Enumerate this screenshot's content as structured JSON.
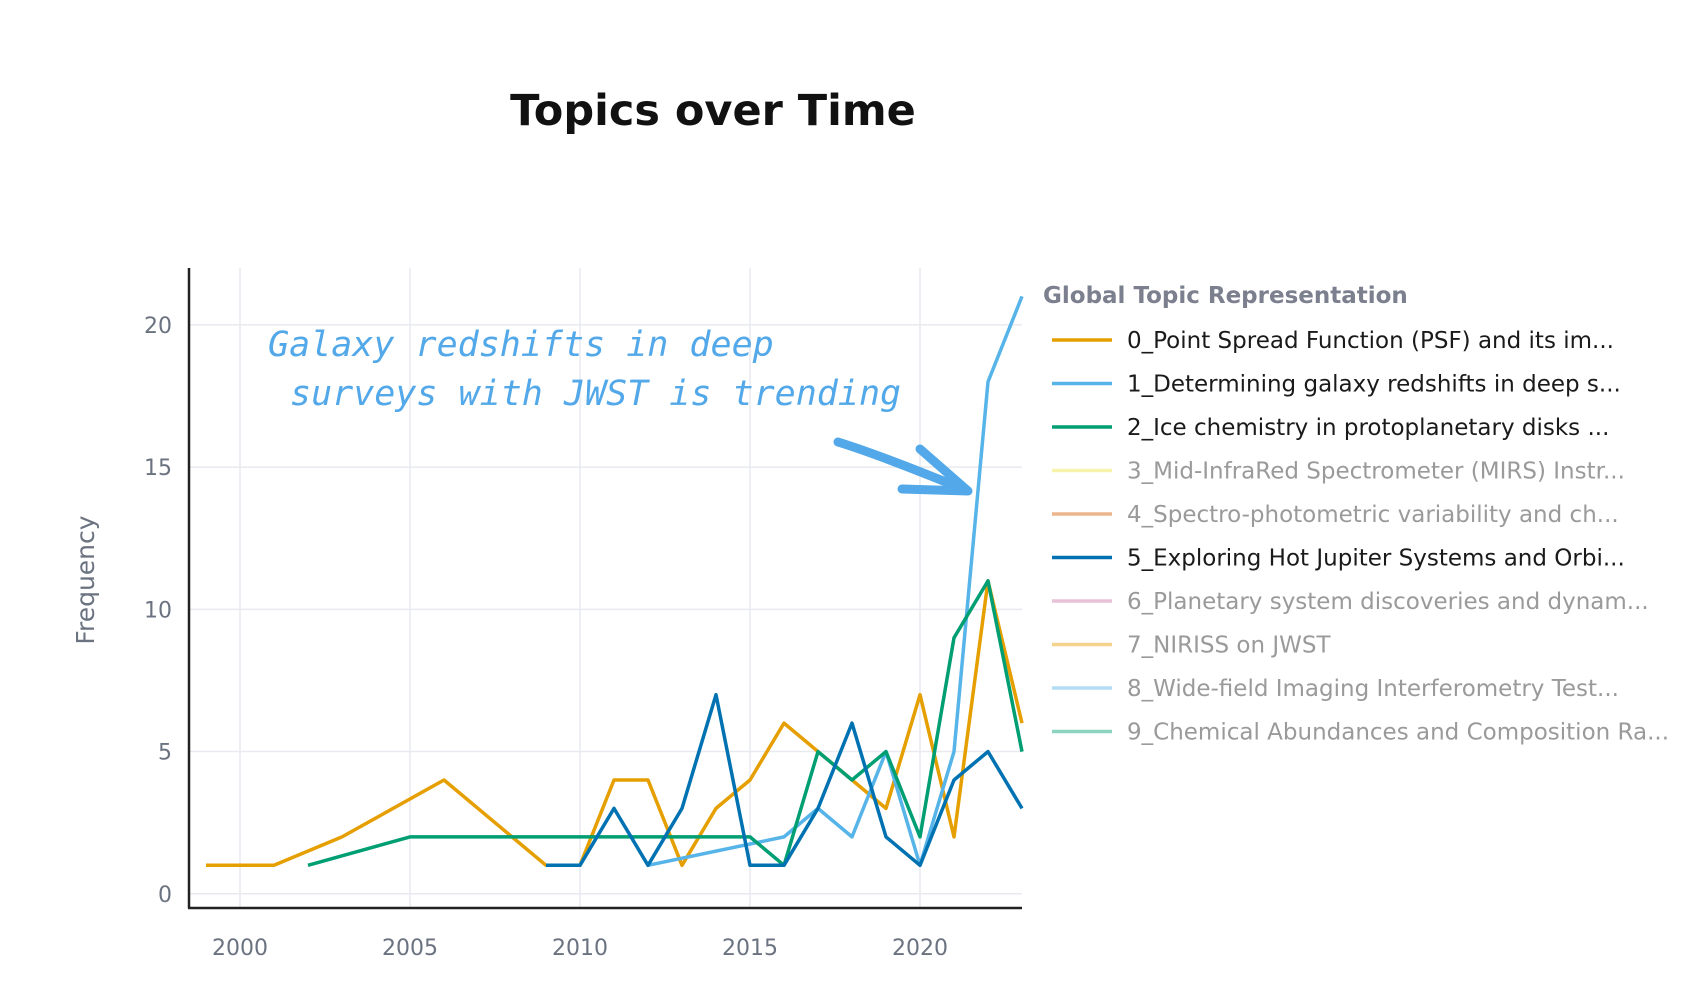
{
  "chart_data": {
    "type": "line",
    "title": "Topics over Time",
    "xlabel": "",
    "ylabel": "Frequency",
    "xlim": [
      1998.5,
      2023
    ],
    "ylim": [
      -0.5,
      22
    ],
    "x_ticks": [
      "2000",
      "2005",
      "2010",
      "2015",
      "2020"
    ],
    "y_ticks": [
      "0",
      "5",
      "10",
      "15",
      "20"
    ],
    "grid": true,
    "legend": {
      "title": "Global Topic Representation",
      "placement": "right"
    },
    "series": [
      {
        "name": "0_Point Spread Function (PSF) and its im...",
        "color": "#e69f00",
        "visible": true,
        "x": [
          1999,
          2000,
          2001,
          2003,
          2006,
          2008,
          2009,
          2010,
          2011,
          2012,
          2013,
          2014,
          2015,
          2016,
          2018,
          2019,
          2020,
          2021,
          2022,
          2023
        ],
        "y": [
          1,
          1,
          1,
          2,
          4,
          2,
          1,
          1,
          4,
          4,
          1,
          3,
          4,
          6,
          4,
          3,
          7,
          2,
          11,
          6
        ]
      },
      {
        "name": "1_Determining galaxy redshifts in deep s...",
        "color": "#56b4e9",
        "visible": true,
        "x": [
          2012,
          2016,
          2017,
          2018,
          2019,
          2020,
          2021,
          2022,
          2023
        ],
        "y": [
          1,
          2,
          3,
          2,
          5,
          1,
          5,
          18,
          21
        ]
      },
      {
        "name": "2_Ice chemistry in protoplanetary disks ...",
        "color": "#009e73",
        "visible": true,
        "x": [
          2002,
          2005,
          2015,
          2016,
          2017,
          2018,
          2019,
          2020,
          2021,
          2022,
          2023
        ],
        "y": [
          1,
          2,
          2,
          1,
          5,
          4,
          5,
          2,
          9,
          11,
          5
        ]
      },
      {
        "name": "3_Mid-InfraRed Spectrometer (MIRS) Instr...",
        "color": "#f0e442",
        "visible": false
      },
      {
        "name": "4_Spectro-photometric variability and ch...",
        "color": "#d55e00",
        "visible": false
      },
      {
        "name": "5_Exploring Hot Jupiter Systems and Orbi...",
        "color": "#0072b2",
        "visible": true,
        "x": [
          2009,
          2010,
          2011,
          2012,
          2013,
          2014,
          2015,
          2016,
          2017,
          2018,
          2019,
          2020,
          2021,
          2022,
          2023
        ],
        "y": [
          1,
          1,
          3,
          1,
          3,
          7,
          1,
          1,
          3,
          6,
          2,
          1,
          4,
          5,
          3
        ]
      },
      {
        "name": "6_Planetary system discoveries and dynam...",
        "color": "#cc79a7",
        "visible": false
      },
      {
        "name": "7_NIRISS on JWST",
        "color": "#e69f00",
        "visible": false
      },
      {
        "name": "8_Wide-field Imaging Interferometry Test...",
        "color": "#56b4e9",
        "visible": false
      },
      {
        "name": "9_Chemical Abundances and Composition Ra...",
        "color": "#009e73",
        "visible": false
      }
    ],
    "annotation": {
      "lines": [
        "Galaxy redshifts in deep",
        "surveys with JWST is trending"
      ],
      "color": "#52a8e8",
      "points_to": {
        "x": 2021.5,
        "y": 14
      }
    }
  }
}
